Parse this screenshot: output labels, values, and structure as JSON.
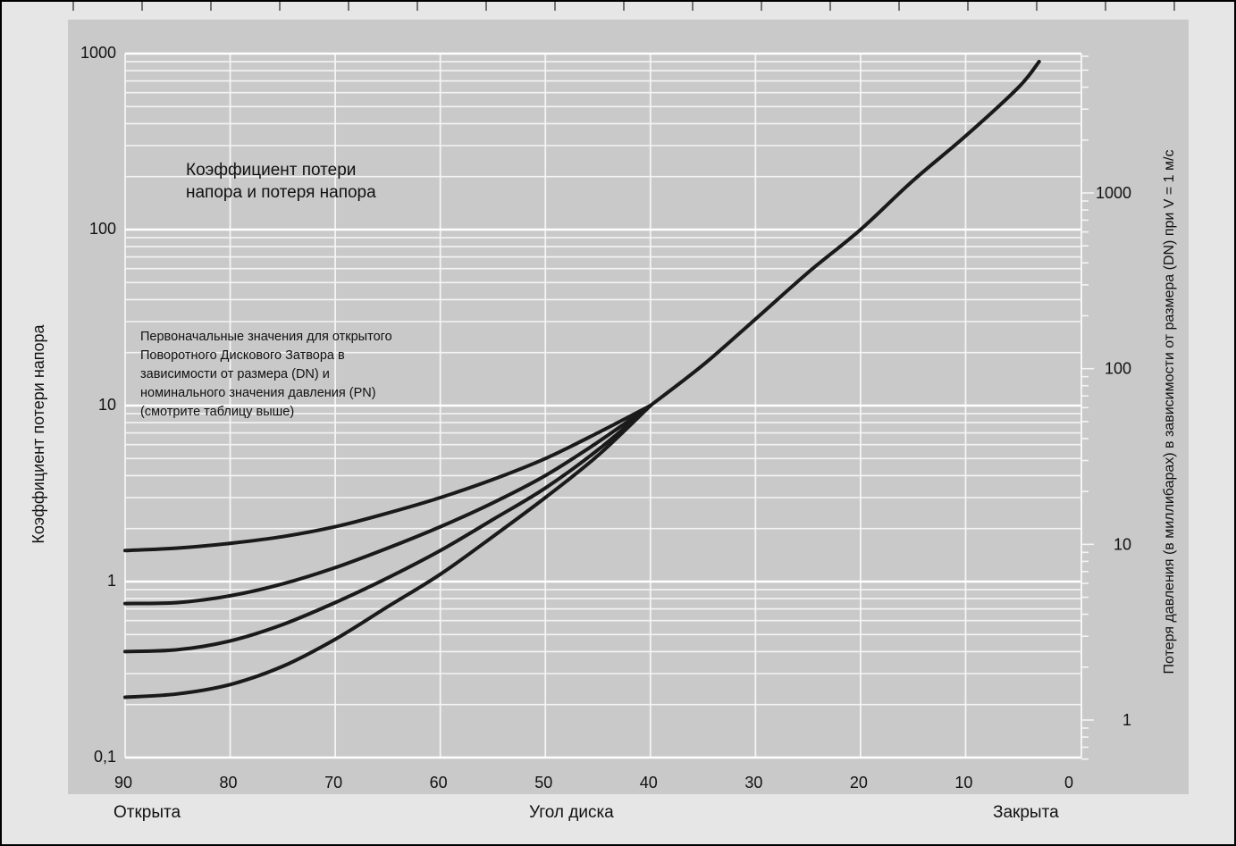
{
  "chart_data": {
    "type": "line",
    "annotation_title_lines": [
      "Коэффициент потери",
      "напора и потеря напора"
    ],
    "annotation_note_lines": [
      "Первоначальные значения для открытого",
      "Поворотного Дискового Затвора в",
      "зависимости от размера (DN) и",
      "номинального значения давления (PN)",
      "(смотрите таблицу выше)"
    ],
    "ylabel": "Коэффициент потери напора",
    "ylabel_right": "Потеря давления (в миллибарах) в зависимости от размера (DN) при V = 1 м/с",
    "xlabel": "Угол диска",
    "x_left_label": "Открыта",
    "x_right_label": "Закрыта",
    "x_axis": {
      "range": [
        90,
        0
      ],
      "reversed": true,
      "ticks": [
        90,
        80,
        70,
        60,
        50,
        40,
        30,
        20,
        10,
        0
      ]
    },
    "y_axis": {
      "scale": "log",
      "range": [
        0.1,
        1000
      ],
      "ticks": [
        0.1,
        1,
        10,
        100,
        1000
      ],
      "tick_labels": [
        "0,1",
        "1",
        "10",
        "100",
        "1000"
      ]
    },
    "y_axis_right": {
      "scale": "log",
      "ticks": [
        1,
        10,
        100,
        1000
      ],
      "tick_labels": [
        "1",
        "10",
        "100",
        "1000"
      ]
    },
    "grid": true,
    "series": [
      {
        "x": [
          90,
          85,
          80,
          75,
          70,
          65,
          60,
          55,
          50,
          45,
          40
        ],
        "y": [
          1.5,
          1.55,
          1.65,
          1.8,
          2.05,
          2.45,
          3.0,
          3.8,
          5.0,
          7.0,
          10.0
        ]
      },
      {
        "x": [
          90,
          85,
          80,
          75,
          70,
          65,
          60,
          55,
          50,
          45,
          40
        ],
        "y": [
          0.75,
          0.76,
          0.83,
          0.97,
          1.2,
          1.55,
          2.05,
          2.8,
          4.0,
          6.2,
          10.0
        ]
      },
      {
        "x": [
          90,
          85,
          80,
          75,
          70,
          65,
          60,
          55,
          50,
          45,
          40
        ],
        "y": [
          0.4,
          0.41,
          0.46,
          0.57,
          0.76,
          1.05,
          1.5,
          2.25,
          3.4,
          5.6,
          10.0
        ]
      },
      {
        "x": [
          90,
          85,
          80,
          75,
          70,
          65,
          60,
          55,
          50,
          45,
          40
        ],
        "y": [
          0.22,
          0.23,
          0.26,
          0.33,
          0.47,
          0.72,
          1.1,
          1.8,
          3.0,
          5.2,
          10.0
        ]
      },
      {
        "x": [
          40,
          35,
          30,
          25,
          20,
          15,
          10,
          5,
          3
        ],
        "y": [
          10.0,
          17.0,
          31.0,
          57.0,
          100.0,
          190.0,
          340.0,
          640.0,
          900.0
        ]
      }
    ]
  }
}
